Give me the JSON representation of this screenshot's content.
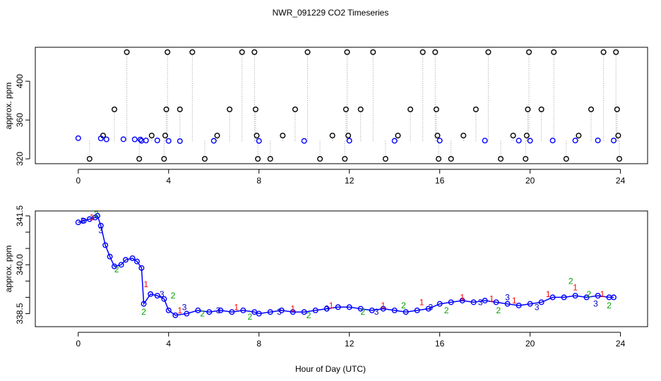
{
  "figure": {
    "title": "NWR_091229  CO2 Timeseries",
    "xlabel": "Hour of Day (UTC)"
  },
  "chart_data": [
    {
      "type": "scatter",
      "panel": "top",
      "title": "NWR_091229  CO2 Timeseries",
      "xlabel": "",
      "ylabel": "approx. ppm",
      "xlim": [
        -1.9,
        25.2
      ],
      "ylim": [
        315,
        435
      ],
      "xticks": [
        0,
        4,
        8,
        12,
        16,
        20,
        24
      ],
      "yticks": [
        320,
        360,
        400
      ],
      "grid": false,
      "series": [
        {
          "marker": "circle-open",
          "color": "#000000",
          "connector": "dotted-vertical",
          "baseline": 338.5,
          "points": [
            [
              0.5,
              320
            ],
            [
              1.1,
              344
            ],
            [
              1.6,
              371
            ],
            [
              2.15,
              430
            ],
            [
              2.7,
              320
            ],
            [
              3.25,
              344
            ],
            [
              3.8,
              320
            ],
            [
              3.85,
              344
            ],
            [
              3.9,
              371
            ],
            [
              3.95,
              430
            ],
            [
              4.5,
              371
            ],
            [
              5.05,
              430
            ],
            [
              5.6,
              320
            ],
            [
              6.15,
              344
            ],
            [
              6.7,
              371
            ],
            [
              7.25,
              430
            ],
            [
              7.8,
              430
            ],
            [
              7.85,
              371
            ],
            [
              7.9,
              344
            ],
            [
              7.95,
              320
            ],
            [
              8.5,
              320
            ],
            [
              9.05,
              344
            ],
            [
              9.6,
              371
            ],
            [
              10.15,
              430
            ],
            [
              10.7,
              320
            ],
            [
              11.25,
              344
            ],
            [
              11.8,
              320
            ],
            [
              11.85,
              371
            ],
            [
              11.9,
              430
            ],
            [
              11.95,
              344
            ],
            [
              12.5,
              371
            ],
            [
              13.05,
              430
            ],
            [
              13.6,
              320
            ],
            [
              14.15,
              344
            ],
            [
              14.7,
              371
            ],
            [
              15.25,
              430
            ],
            [
              15.8,
              430
            ],
            [
              15.85,
              371
            ],
            [
              15.9,
              344
            ],
            [
              15.95,
              320
            ],
            [
              16.5,
              320
            ],
            [
              17.05,
              344
            ],
            [
              17.6,
              371
            ],
            [
              18.15,
              430
            ],
            [
              18.7,
              320
            ],
            [
              19.25,
              344
            ],
            [
              19.8,
              320
            ],
            [
              19.85,
              344
            ],
            [
              19.9,
              371
            ],
            [
              19.95,
              430
            ],
            [
              20.5,
              371
            ],
            [
              21.05,
              430
            ],
            [
              21.6,
              320
            ],
            [
              22.15,
              344
            ],
            [
              22.7,
              371
            ],
            [
              23.25,
              430
            ],
            [
              23.8,
              430
            ],
            [
              23.85,
              371
            ],
            [
              23.9,
              344
            ],
            [
              23.95,
              320
            ]
          ]
        },
        {
          "marker": "circle-open",
          "color": "#0000ff",
          "connector": "none",
          "points": [
            [
              0.0,
              341.3
            ],
            [
              1.0,
              341.1
            ],
            [
              1.25,
              340.1
            ],
            [
              2.0,
              340.2
            ],
            [
              2.5,
              340.1
            ],
            [
              2.75,
              339.9
            ],
            [
              2.8,
              338.6
            ],
            [
              3.0,
              338.9
            ],
            [
              3.5,
              339.0
            ],
            [
              4.0,
              338.5
            ],
            [
              4.5,
              338.3
            ],
            [
              6.0,
              338.6
            ],
            [
              8.0,
              338.5
            ],
            [
              10.0,
              338.5
            ],
            [
              12.0,
              338.7
            ],
            [
              14.0,
              338.6
            ],
            [
              16.0,
              338.8
            ],
            [
              18.0,
              338.8
            ],
            [
              19.5,
              338.8
            ],
            [
              20.0,
              338.7
            ],
            [
              21.0,
              338.9
            ],
            [
              22.0,
              338.9
            ],
            [
              23.0,
              339.0
            ],
            [
              23.7,
              338.9
            ]
          ]
        }
      ]
    },
    {
      "type": "scatter",
      "panel": "bottom",
      "xlabel": "Hour of Day (UTC)",
      "ylabel": "approx. ppm",
      "xlim": [
        -1.9,
        25.2
      ],
      "ylim": [
        338.1,
        341.65
      ],
      "xticks": [
        0,
        4,
        8,
        12,
        16,
        20,
        24
      ],
      "yticks": [
        338.5,
        339.0,
        339.5,
        340.0,
        340.5,
        341.0,
        341.5
      ],
      "ytick_labels": [
        "338.5",
        "",
        "",
        "340.0",
        "",
        "",
        "341.5"
      ],
      "grid": false,
      "series": [
        {
          "marker": "circle-open",
          "color": "#0000ff",
          "connector": "line",
          "points": [
            [
              0.0,
              341.3
            ],
            [
              0.25,
              341.35
            ],
            [
              0.5,
              341.4
            ],
            [
              0.75,
              341.45
            ],
            [
              0.85,
              341.5
            ],
            [
              1.0,
              341.2
            ],
            [
              1.2,
              340.6
            ],
            [
              1.4,
              340.25
            ],
            [
              1.6,
              339.95
            ],
            [
              1.9,
              340.0
            ],
            [
              2.1,
              340.15
            ],
            [
              2.4,
              340.2
            ],
            [
              2.6,
              340.1
            ],
            [
              2.8,
              339.9
            ],
            [
              2.9,
              338.8
            ],
            [
              3.2,
              339.1
            ],
            [
              3.5,
              339.05
            ],
            [
              3.8,
              338.95
            ],
            [
              4.0,
              338.6
            ],
            [
              4.3,
              338.45
            ],
            [
              4.8,
              338.5
            ],
            [
              5.3,
              338.6
            ],
            [
              5.8,
              338.55
            ],
            [
              6.3,
              338.6
            ],
            [
              6.8,
              338.55
            ],
            [
              7.3,
              338.6
            ],
            [
              7.8,
              338.55
            ],
            [
              8.0,
              338.5
            ],
            [
              8.5,
              338.55
            ],
            [
              9.0,
              338.6
            ],
            [
              9.5,
              338.55
            ],
            [
              10.0,
              338.55
            ],
            [
              10.5,
              338.6
            ],
            [
              11.0,
              338.65
            ],
            [
              11.5,
              338.7
            ],
            [
              12.0,
              338.7
            ],
            [
              12.5,
              338.65
            ],
            [
              13.0,
              338.6
            ],
            [
              13.5,
              338.65
            ],
            [
              14.0,
              338.6
            ],
            [
              14.5,
              338.55
            ],
            [
              15.0,
              338.6
            ],
            [
              15.5,
              338.65
            ],
            [
              16.0,
              338.8
            ],
            [
              16.5,
              338.85
            ],
            [
              17.0,
              338.9
            ],
            [
              17.5,
              338.85
            ],
            [
              18.0,
              338.9
            ],
            [
              18.5,
              338.85
            ],
            [
              19.0,
              338.8
            ],
            [
              19.5,
              338.75
            ],
            [
              20.0,
              338.8
            ],
            [
              20.5,
              338.85
            ],
            [
              21.0,
              339.0
            ],
            [
              21.5,
              339.0
            ],
            [
              22.0,
              339.05
            ],
            [
              22.5,
              339.0
            ],
            [
              23.0,
              339.05
            ],
            [
              23.5,
              339.0
            ],
            [
              23.7,
              339.0
            ]
          ]
        },
        {
          "marker": "digit",
          "label": "1",
          "color": "#ff0000",
          "connector": "none",
          "points": [
            [
              0.6,
              341.45
            ],
            [
              3.0,
              339.4
            ],
            [
              4.5,
              338.6
            ],
            [
              7.0,
              338.7
            ],
            [
              9.5,
              338.65
            ],
            [
              11.2,
              338.75
            ],
            [
              13.5,
              338.75
            ],
            [
              15.2,
              338.85
            ],
            [
              17.0,
              339.0
            ],
            [
              18.3,
              338.95
            ],
            [
              19.3,
              338.9
            ],
            [
              20.8,
              339.1
            ],
            [
              22.0,
              339.3
            ],
            [
              23.2,
              339.1
            ]
          ]
        },
        {
          "marker": "digit",
          "label": "2",
          "color": "#00a000",
          "connector": "none",
          "points": [
            [
              0.8,
              341.55
            ],
            [
              1.7,
              339.85
            ],
            [
              2.9,
              338.55
            ],
            [
              4.2,
              339.05
            ],
            [
              5.5,
              338.5
            ],
            [
              7.6,
              338.4
            ],
            [
              10.2,
              338.45
            ],
            [
              12.6,
              338.55
            ],
            [
              14.4,
              338.75
            ],
            [
              16.3,
              338.6
            ],
            [
              18.6,
              338.6
            ],
            [
              21.8,
              339.5
            ],
            [
              22.6,
              339.1
            ],
            [
              23.5,
              338.75
            ]
          ]
        },
        {
          "marker": "digit",
          "label": "3",
          "color": "#0000c0",
          "connector": "none",
          "points": [
            [
              0.2,
              341.35
            ],
            [
              1.0,
              341.05
            ],
            [
              3.7,
              339.1
            ],
            [
              4.7,
              338.7
            ],
            [
              6.2,
              338.6
            ],
            [
              8.9,
              338.55
            ],
            [
              11.0,
              338.65
            ],
            [
              13.2,
              338.55
            ],
            [
              15.6,
              338.7
            ],
            [
              17.8,
              338.85
            ],
            [
              19.0,
              339.0
            ],
            [
              20.3,
              338.7
            ],
            [
              22.9,
              338.8
            ]
          ]
        }
      ]
    }
  ]
}
